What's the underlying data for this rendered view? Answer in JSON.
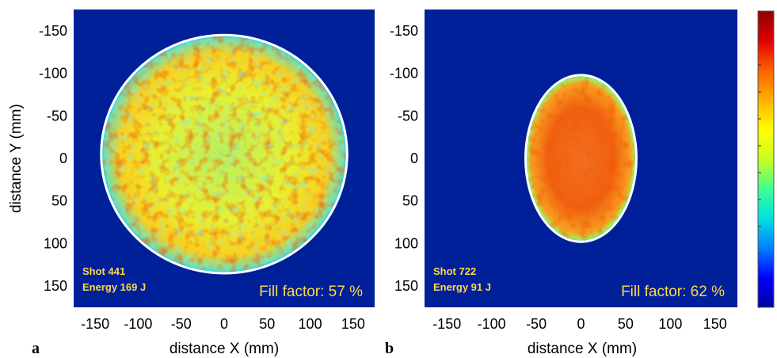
{
  "colors": {
    "background": "#00209a",
    "outline": "#ffffff",
    "annotation": "#ffd84a",
    "colormap": [
      "#0000a0",
      "#0000ff",
      "#0080ff",
      "#00e0e0",
      "#40ff90",
      "#c8ff20",
      "#ffff00",
      "#ffb000",
      "#ff6000",
      "#e00000",
      "#900000"
    ]
  },
  "chart_data": [
    {
      "type": "heatmap",
      "panel_label": "a",
      "xlabel": "distance X (mm)",
      "ylabel": "distance Y (mm)",
      "xlim": [
        -175,
        175
      ],
      "ylim": [
        -175,
        175
      ],
      "x_ticks": [
        "-150",
        "-100",
        "-50",
        "0",
        "50",
        "100",
        "150"
      ],
      "y_ticks": [
        "-150",
        "-100",
        "-50",
        "0",
        "50",
        "100",
        "150"
      ],
      "beam_shape": "circle",
      "beam_center": [
        0,
        -5
      ],
      "beam_semi_axes": [
        143,
        140
      ],
      "fill_level": "mostly yellow-green, red patches at left and top edges",
      "shot_label": "Shot 441",
      "energy_label": "Energy 169 J",
      "fill_factor_label": "Fill factor: 57 %"
    },
    {
      "type": "heatmap",
      "panel_label": "b",
      "xlabel": "distance X (mm)",
      "ylabel": "",
      "xlim": [
        -175,
        175
      ],
      "ylim": [
        -175,
        175
      ],
      "x_ticks": [
        "-150",
        "-100",
        "-50",
        "0",
        "50",
        "100",
        "150"
      ],
      "y_ticks": [
        "-150",
        "-100",
        "-50",
        "0",
        "50",
        "100",
        "150"
      ],
      "beam_shape": "ellipse",
      "beam_center": [
        0,
        0
      ],
      "beam_semi_axes": [
        62,
        98
      ],
      "fill_level": "mostly orange-red",
      "shot_label": "Shot 722",
      "energy_label": "Energy 91 J",
      "fill_factor_label": "Fill factor: 62 %"
    }
  ],
  "colorbar": {
    "orientation": "vertical",
    "tick_count": 11
  }
}
